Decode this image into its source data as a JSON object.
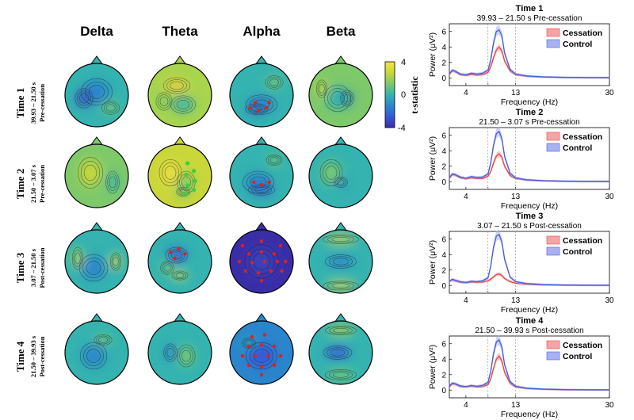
{
  "figure": {
    "bands": [
      "Delta",
      "Theta",
      "Alpha",
      "Beta"
    ],
    "rows": [
      {
        "title": "Time 1",
        "range": "39.93 – 21.50 s",
        "phase": "Pre-cessation"
      },
      {
        "title": "Time 2",
        "range": "21.50 – 3.07 s",
        "phase": "Pre-cessation"
      },
      {
        "title": "Time 3",
        "range": "3.07 – 21.50 s",
        "phase": "Post-cessation"
      },
      {
        "title": "Time 4",
        "range": "21.50 – 39.93 s",
        "phase": "Post-cessation"
      }
    ],
    "colorbar": {
      "label": "t-statistic",
      "tick_max": "4",
      "tick_mid": "0",
      "tick_min": "-4",
      "colors": [
        "#f7e340",
        "#c9d73a",
        "#7ec96a",
        "#34b3b0",
        "#2a86cc",
        "#3558d8",
        "#3a2ea8"
      ]
    },
    "topomaps": [
      [
        {
          "band": "Delta",
          "bg": "#34b3b0",
          "blobs": [
            [
              "#2a86cc",
              0.5,
              0.45,
              0.35,
              0.3
            ],
            [
              "#3a55c8",
              0.3,
              0.55,
              0.2,
              0.22
            ],
            [
              "#7ec96a",
              0.72,
              0.7,
              0.2,
              0.15
            ]
          ],
          "markers": []
        },
        {
          "band": "Theta",
          "bg": "#a8d44e",
          "blobs": [
            [
              "#e0d040",
              0.45,
              0.35,
              0.3,
              0.18
            ],
            [
              "#34b3b0",
              0.55,
              0.65,
              0.28,
              0.2
            ],
            [
              "#7ec96a",
              0.25,
              0.6,
              0.18,
              0.2
            ]
          ],
          "markers": []
        },
        {
          "band": "Alpha",
          "bg": "#34b3b0",
          "blobs": [
            [
              "#2a86cc",
              0.5,
              0.65,
              0.35,
              0.22
            ],
            [
              "#3a55c8",
              0.42,
              0.72,
              0.25,
              0.12
            ],
            [
              "#7ec96a",
              0.7,
              0.3,
              0.2,
              0.15
            ]
          ],
          "markers": [
            "red",
            "red",
            "red",
            "red",
            "red"
          ]
        },
        {
          "band": "Beta",
          "bg": "#7ec96a",
          "blobs": [
            [
              "#34b3b0",
              0.45,
              0.55,
              0.3,
              0.3
            ],
            [
              "#2a86cc",
              0.6,
              0.55,
              0.15,
              0.18
            ],
            [
              "#c9d73a",
              0.2,
              0.4,
              0.12,
              0.2
            ]
          ],
          "markers": []
        }
      ],
      [
        {
          "band": "Delta",
          "bg": "#7ec96a",
          "blobs": [
            [
              "#c9d73a",
              0.4,
              0.45,
              0.28,
              0.35
            ],
            [
              "#34b3b0",
              0.75,
              0.6,
              0.15,
              0.25
            ]
          ],
          "markers": []
        },
        {
          "band": "Theta",
          "bg": "#c9d73a",
          "blobs": [
            [
              "#e8dc45",
              0.35,
              0.45,
              0.25,
              0.3
            ],
            [
              "#7ec96a",
              0.6,
              0.6,
              0.2,
              0.25
            ],
            [
              "#34b3b0",
              0.55,
              0.75,
              0.15,
              0.1
            ]
          ],
          "markers": [
            "green",
            "green",
            "green",
            "green",
            "green",
            "green",
            "green"
          ]
        },
        {
          "band": "Alpha",
          "bg": "#34b3b0",
          "blobs": [
            [
              "#2a86cc",
              0.45,
              0.6,
              0.35,
              0.25
            ],
            [
              "#3558d8",
              0.5,
              0.72,
              0.3,
              0.12
            ],
            [
              "#7ec96a",
              0.7,
              0.25,
              0.18,
              0.12
            ]
          ],
          "markers": [
            "red",
            "red",
            "red"
          ]
        },
        {
          "band": "Beta",
          "bg": "#34b3b0",
          "blobs": [
            [
              "#7ec96a",
              0.35,
              0.45,
              0.25,
              0.3
            ],
            [
              "#2a86cc",
              0.5,
              0.6,
              0.15,
              0.12
            ]
          ],
          "markers": []
        }
      ],
      [
        {
          "band": "Delta",
          "bg": "#34b3b0",
          "blobs": [
            [
              "#2a86cc",
              0.45,
              0.6,
              0.32,
              0.3
            ],
            [
              "#c9d73a",
              0.2,
              0.45,
              0.12,
              0.25
            ],
            [
              "#e8dc45",
              0.8,
              0.5,
              0.12,
              0.2
            ]
          ],
          "markers": []
        },
        {
          "band": "Theta",
          "bg": "#34b3b0",
          "blobs": [
            [
              "#3558d8",
              0.45,
              0.4,
              0.25,
              0.18
            ],
            [
              "#e8dc45",
              0.5,
              0.72,
              0.18,
              0.1
            ],
            [
              "#7ec96a",
              0.3,
              0.6,
              0.15,
              0.15
            ]
          ],
          "markers": [
            "red",
            "red",
            "red",
            "red"
          ]
        },
        {
          "band": "Alpha",
          "bg": "#3a2ea8",
          "blobs": [
            [
              "#3a3fb8",
              0.5,
              0.5,
              0.38,
              0.38
            ]
          ],
          "markers": [
            "red",
            "red",
            "red",
            "red",
            "red",
            "red",
            "red",
            "red",
            "red",
            "red",
            "red",
            "red",
            "red",
            "red",
            "red",
            "red"
          ]
        },
        {
          "band": "Beta",
          "bg": "#34b3b0",
          "blobs": [
            [
              "#2a86cc",
              0.5,
              0.5,
              0.35,
              0.15
            ],
            [
              "#e8dc45",
              0.5,
              0.15,
              0.4,
              0.1
            ],
            [
              "#e8dc45",
              0.5,
              0.88,
              0.4,
              0.1
            ]
          ],
          "markers": []
        }
      ],
      [
        {
          "band": "Delta",
          "bg": "#34b3b0",
          "blobs": [
            [
              "#2a86cc",
              0.45,
              0.55,
              0.3,
              0.3
            ],
            [
              "#7ec96a",
              0.6,
              0.3,
              0.2,
              0.12
            ]
          ],
          "markers": []
        },
        {
          "band": "Theta",
          "bg": "#34b3b0",
          "blobs": [
            [
              "#7ec96a",
              0.6,
              0.55,
              0.2,
              0.25
            ],
            [
              "#2a86cc",
              0.35,
              0.5,
              0.15,
              0.2
            ]
          ],
          "markers": []
        },
        {
          "band": "Alpha",
          "bg": "#2a86cc",
          "blobs": [
            [
              "#3558d8",
              0.5,
              0.55,
              0.35,
              0.3
            ],
            [
              "#34b3b0",
              0.3,
              0.35,
              0.15,
              0.12
            ]
          ],
          "markers": [
            "red",
            "red",
            "red",
            "red",
            "red",
            "red",
            "red",
            "red",
            "red",
            "red",
            "red",
            "red",
            "red"
          ]
        },
        {
          "band": "Beta",
          "bg": "#34b3b0",
          "blobs": [
            [
              "#3558d8",
              0.45,
              0.5,
              0.32,
              0.15
            ],
            [
              "#c9d73a",
              0.5,
              0.15,
              0.35,
              0.1
            ],
            [
              "#7ec96a",
              0.5,
              0.85,
              0.35,
              0.12
            ]
          ],
          "markers": []
        }
      ]
    ],
    "colors": {
      "cessation": "#e8484a",
      "control": "#4a5fe0",
      "cessation_fill": "#f4a5a8",
      "control_fill": "#a9b2f0",
      "marker_red": "#e02020",
      "marker_green": "#3cd040"
    }
  },
  "chart_data": [
    {
      "type": "line",
      "title": "Time 1",
      "subtitle": "39.93 – 21.50 s Pre-cessation",
      "xlabel": "Frequency (Hz)",
      "ylabel": "Power (μV²)",
      "xlim": [
        1,
        30
      ],
      "ylim": [
        -1,
        7
      ],
      "xticks": [
        4,
        8,
        13,
        30
      ],
      "xtick_labels": [
        "4",
        "",
        "13",
        "30"
      ],
      "yticks": [
        0,
        2,
        4,
        6
      ],
      "legend": [
        "Cessation",
        "Control"
      ],
      "x": [
        1,
        1.5,
        2,
        3,
        4,
        5,
        6,
        7,
        8,
        8.5,
        9,
        9.5,
        10,
        10.5,
        11,
        12,
        13,
        15,
        18,
        22,
        26,
        30
      ],
      "series": [
        {
          "name": "Cessation",
          "values": [
            0.4,
            0.9,
            0.8,
            0.4,
            0.3,
            0.45,
            0.35,
            0.4,
            0.7,
            1.4,
            2.6,
            3.6,
            4.0,
            3.5,
            2.2,
            0.9,
            0.4,
            0.2,
            0.1,
            0.05,
            0.03,
            0.02
          ]
        },
        {
          "name": "Control",
          "values": [
            0.5,
            1.0,
            0.9,
            0.5,
            0.4,
            0.6,
            0.5,
            0.6,
            1.0,
            2.3,
            4.5,
            6.0,
            6.2,
            5.5,
            3.2,
            1.1,
            0.5,
            0.25,
            0.12,
            0.06,
            0.04,
            0.03
          ]
        }
      ]
    },
    {
      "type": "line",
      "title": "Time 2",
      "subtitle": "21.50 – 3.07 s Pre-cessation",
      "xlabel": "Frequency (Hz)",
      "ylabel": "Power (μV²)",
      "xlim": [
        1,
        30
      ],
      "ylim": [
        -1,
        7
      ],
      "xticks": [
        4,
        8,
        13,
        30
      ],
      "xtick_labels": [
        "4",
        "",
        "13",
        "30"
      ],
      "yticks": [
        0,
        2,
        4,
        6
      ],
      "legend": [
        "Cessation",
        "Control"
      ],
      "x": [
        1,
        1.5,
        2,
        3,
        4,
        5,
        6,
        7,
        8,
        8.5,
        9,
        9.5,
        10,
        10.5,
        11,
        12,
        13,
        15,
        18,
        22,
        26,
        30
      ],
      "series": [
        {
          "name": "Cessation",
          "values": [
            0.4,
            0.9,
            0.85,
            0.5,
            0.35,
            0.5,
            0.4,
            0.4,
            0.7,
            1.3,
            2.4,
            3.3,
            3.6,
            3.2,
            2.0,
            0.8,
            0.4,
            0.2,
            0.1,
            0.05,
            0.03,
            0.02
          ]
        },
        {
          "name": "Control",
          "values": [
            0.5,
            1.0,
            0.95,
            0.6,
            0.45,
            0.65,
            0.55,
            0.6,
            1.0,
            2.4,
            4.7,
            6.2,
            6.5,
            5.6,
            3.3,
            1.1,
            0.5,
            0.25,
            0.12,
            0.06,
            0.04,
            0.03
          ]
        }
      ]
    },
    {
      "type": "line",
      "title": "Time 3",
      "subtitle": "3.07 – 21.50 s Post-cessation",
      "xlabel": "Frequency (Hz)",
      "ylabel": "Power (μV²)",
      "xlim": [
        1,
        30
      ],
      "ylim": [
        -1,
        7
      ],
      "xticks": [
        4,
        8,
        13,
        30
      ],
      "xtick_labels": [
        "4",
        "",
        "13",
        "30"
      ],
      "yticks": [
        0,
        2,
        4,
        6
      ],
      "legend": [
        "Cessation",
        "Control"
      ],
      "x": [
        1,
        1.5,
        2,
        3,
        4,
        5,
        6,
        7,
        8,
        8.5,
        9,
        9.5,
        10,
        10.5,
        11,
        12,
        13,
        15,
        18,
        22,
        26,
        30
      ],
      "series": [
        {
          "name": "Cessation",
          "values": [
            0.5,
            0.7,
            0.6,
            0.4,
            0.35,
            0.45,
            0.4,
            0.45,
            0.6,
            0.8,
            1.1,
            1.4,
            1.5,
            1.3,
            0.9,
            0.5,
            0.3,
            0.15,
            0.08,
            0.04,
            0.03,
            0.02
          ]
        },
        {
          "name": "Control",
          "values": [
            0.5,
            0.8,
            0.7,
            0.5,
            0.4,
            0.55,
            0.5,
            0.6,
            1.0,
            2.5,
            4.9,
            6.4,
            6.6,
            5.7,
            3.4,
            1.1,
            0.5,
            0.25,
            0.12,
            0.06,
            0.04,
            0.03
          ]
        }
      ]
    },
    {
      "type": "line",
      "title": "Time 4",
      "subtitle": "21.50 – 39.93 s Post-cessation",
      "xlabel": "Frequency (Hz)",
      "ylabel": "Power (μV²)",
      "xlim": [
        1,
        30
      ],
      "ylim": [
        -1,
        7
      ],
      "xticks": [
        4,
        8,
        13,
        30
      ],
      "xtick_labels": [
        "4",
        "",
        "13",
        "30"
      ],
      "yticks": [
        0,
        2,
        4,
        6
      ],
      "legend": [
        "Cessation",
        "Control"
      ],
      "x": [
        1,
        1.5,
        2,
        3,
        4,
        5,
        6,
        7,
        8,
        8.5,
        9,
        9.5,
        10,
        10.5,
        11,
        12,
        13,
        15,
        18,
        22,
        26,
        30
      ],
      "series": [
        {
          "name": "Cessation",
          "values": [
            0.4,
            0.8,
            0.75,
            0.45,
            0.4,
            0.5,
            0.4,
            0.45,
            0.7,
            1.4,
            2.8,
            4.0,
            4.4,
            3.8,
            2.3,
            0.9,
            0.4,
            0.2,
            0.1,
            0.05,
            0.03,
            0.02
          ]
        },
        {
          "name": "Control",
          "values": [
            0.5,
            0.9,
            0.85,
            0.55,
            0.45,
            0.6,
            0.5,
            0.6,
            1.0,
            2.4,
            4.7,
            6.2,
            6.5,
            5.6,
            3.3,
            1.1,
            0.5,
            0.25,
            0.12,
            0.06,
            0.04,
            0.03
          ]
        }
      ]
    }
  ]
}
